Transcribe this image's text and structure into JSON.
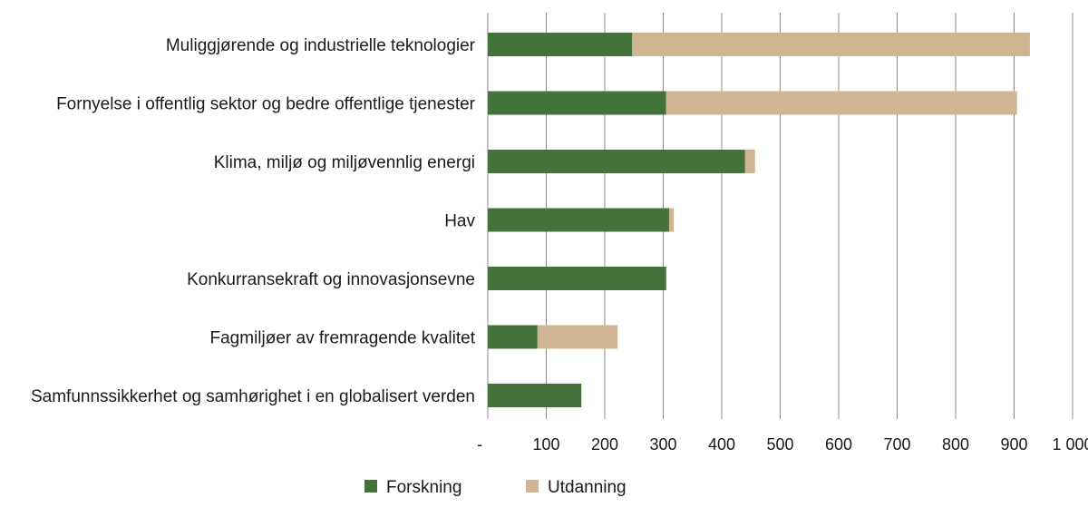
{
  "chart_data": {
    "type": "bar",
    "orientation": "horizontal",
    "stacked": true,
    "categories": [
      "Muliggjørende og industrielle teknologier",
      "Fornyelse i offentlig sektor og bedre offentlige tjenester",
      "Klima, miljø og miljøvennlig energi",
      "Hav",
      "Konkurransekraft og innovasjonsevne",
      "Fagmiljøer av fremragende kvalitet",
      "Samfunnssikkerhet og samhørighet i en globalisert verden"
    ],
    "series": [
      {
        "name": "Forskning",
        "color": "#43723a",
        "values": [
          247,
          305,
          440,
          310,
          305,
          85,
          160
        ]
      },
      {
        "name": "Utdanning",
        "color": "#d0b592",
        "values": [
          680,
          600,
          17,
          8,
          0,
          137,
          0
        ]
      }
    ],
    "xlim": [
      0,
      1000
    ],
    "xticks": [
      0,
      100,
      200,
      300,
      400,
      500,
      600,
      700,
      800,
      900,
      1000
    ],
    "xtick_labels": [
      "-",
      "100",
      "200",
      "300",
      "400",
      "500",
      "600",
      "700",
      "800",
      "900",
      "1 000"
    ],
    "grid": "vertical",
    "legend_position": "bottom"
  }
}
